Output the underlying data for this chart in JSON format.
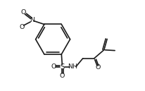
{
  "background": "#ffffff",
  "line_color": "#1a1a1a",
  "line_width": 1.2,
  "font_size": 6.8,
  "fig_width": 2.07,
  "fig_height": 1.29,
  "dpi": 100,
  "xlim": [
    0.0,
    10.5
  ],
  "ylim": [
    2.5,
    9.0
  ]
}
